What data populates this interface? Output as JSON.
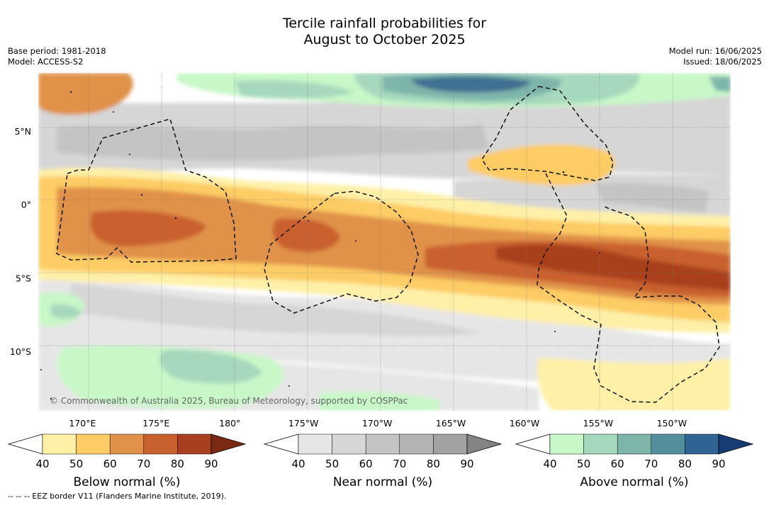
{
  "title_line1": "Tercile rainfall probabilities for",
  "title_line2": "August to October 2025",
  "meta": {
    "base_period": "Base period: 1981-2018",
    "model": "Model: ACCESS-S2",
    "model_run": "Model run: 16/06/2025",
    "issued": "Issued: 18/06/2025"
  },
  "copyright": "© Commonwealth of Australia 2025, Bureau of Meteorology, supported by COSPPac",
  "footer": "-- -- -- EEZ border V11 (Flanders Marine Institute, 2019).",
  "chart_data": {
    "type": "heatmap",
    "map_extent": {
      "lon_range_east": [
        167,
        214
      ],
      "lat_range": [
        -14,
        9
      ]
    },
    "lat_ticks": [
      {
        "label": "5°N",
        "value": 5
      },
      {
        "label": "0°",
        "value": 0
      },
      {
        "label": "5°S",
        "value": -5
      },
      {
        "label": "10°S",
        "value": -10
      }
    ],
    "lon_ticks": [
      {
        "label": "170°E",
        "value": 170
      },
      {
        "label": "175°E",
        "value": 175
      },
      {
        "label": "180°",
        "value": 180
      },
      {
        "label": "175°W",
        "value": 185
      },
      {
        "label": "170°W",
        "value": 190
      },
      {
        "label": "165°W",
        "value": 195
      },
      {
        "label": "160°W",
        "value": 200
      },
      {
        "label": "155°W",
        "value": 205
      },
      {
        "label": "150°W",
        "value": 210
      }
    ],
    "grid": true,
    "colorbars": [
      {
        "label": "Below normal (%)",
        "ticks": [
          "40",
          "50",
          "60",
          "70",
          "80",
          "90"
        ],
        "colors": [
          "#fff0a8",
          "#fdcc65",
          "#e0924a",
          "#c9612f",
          "#a8401f",
          "#7a2a12"
        ]
      },
      {
        "label": "Near normal (%)",
        "ticks": [
          "40",
          "50",
          "60",
          "70",
          "80",
          "90"
        ],
        "colors": [
          "#e6e6e6",
          "#d6d6d6",
          "#c4c4c4",
          "#b4b4b4",
          "#a2a2a2",
          "#848484"
        ]
      },
      {
        "label": "Above normal (%)",
        "ticks": [
          "40",
          "50",
          "60",
          "70",
          "80",
          "90"
        ],
        "colors": [
          "#c8f7c8",
          "#a6d8bd",
          "#7eb5aa",
          "#558f9d",
          "#2f6393",
          "#163c73"
        ]
      }
    ]
  }
}
